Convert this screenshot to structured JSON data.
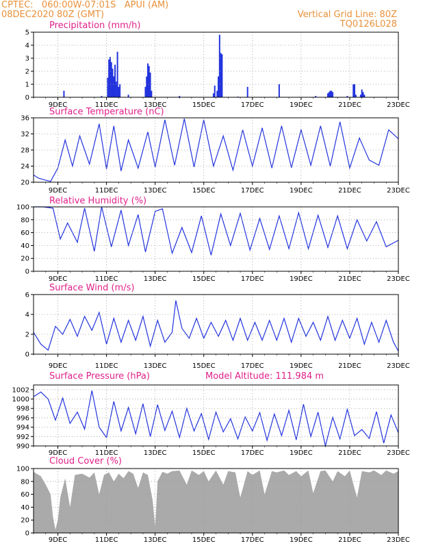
{
  "header": {
    "line1": "CPTEC:   060:00W-07:01S   APUI (AM)",
    "line2": "08DEC2020 80Z (GMT)",
    "right1": "Vertical Grid Line: 80Z",
    "right2": "TQ0126L028"
  },
  "colors": {
    "series": "#2233dd",
    "cloud": "#aaaaaa",
    "title": "#e0208a",
    "header": "#e8913a"
  },
  "chart_data": [
    {
      "type": "bar",
      "title": "Precipitation (mm/h)",
      "ylim": [
        0,
        5
      ],
      "yticks": [
        "0",
        "1",
        "2",
        "3",
        "4",
        "5"
      ],
      "xlim": [
        8,
        23
      ],
      "xticks": [
        9,
        11,
        13,
        15,
        17,
        19,
        21,
        23
      ],
      "xtick_labels": [
        "9DEC",
        "11DEC",
        "13DEC",
        "15DEC",
        "17DEC",
        "19DEC",
        "21DEC",
        "23DEC"
      ],
      "x": [
        9.25,
        10.8,
        11.05,
        11.1,
        11.15,
        11.2,
        11.25,
        11.3,
        11.35,
        11.4,
        11.45,
        11.5,
        11.55,
        11.9,
        12.6,
        12.65,
        12.7,
        12.75,
        12.8,
        12.85,
        14.0,
        15.4,
        15.45,
        15.55,
        15.6,
        15.65,
        15.7,
        15.75,
        16.4,
        16.8,
        18.1,
        19.6,
        20.1,
        20.15,
        20.2,
        20.25,
        20.3,
        20.9,
        21.15,
        21.2,
        21.25,
        21.45,
        21.5,
        21.55,
        21.6
      ],
      "values": [
        0.5,
        0.1,
        1.5,
        2.9,
        3.1,
        2.7,
        2.2,
        1.6,
        2.5,
        1.2,
        3.5,
        0.8,
        1.0,
        0.2,
        0.8,
        1.6,
        2.6,
        2.4,
        1.9,
        0.5,
        0.1,
        0.3,
        0.9,
        0.5,
        1.6,
        4.8,
        3.4,
        3.3,
        0.05,
        0.8,
        1.0,
        0.1,
        0.3,
        0.4,
        0.5,
        0.5,
        0.4,
        0.1,
        1.0,
        1.0,
        0.2,
        0.2,
        0.6,
        0.4,
        0.2
      ]
    },
    {
      "type": "line",
      "title": "Surface Temperature (nC)",
      "ylim": [
        20,
        36
      ],
      "yticks": [
        "20",
        "24",
        "28",
        "32",
        "36"
      ],
      "xlim": [
        8,
        23
      ],
      "xticks": [
        9,
        11,
        13,
        15,
        17,
        19,
        21,
        23
      ],
      "xtick_labels": [
        "9DEC",
        "11DEC",
        "13DEC",
        "15DEC",
        "17DEC",
        "19DEC",
        "21DEC",
        "23DEC"
      ],
      "x": [
        8.0,
        8.2,
        8.5,
        8.7,
        9.0,
        9.3,
        9.6,
        9.9,
        10.3,
        10.7,
        11.0,
        11.3,
        11.6,
        11.9,
        12.3,
        12.7,
        13.0,
        13.4,
        13.8,
        14.2,
        14.6,
        15.0,
        15.4,
        15.8,
        16.2,
        16.6,
        17.0,
        17.4,
        17.8,
        18.2,
        18.6,
        19.0,
        19.4,
        19.8,
        20.2,
        20.6,
        21.0,
        21.4,
        21.8,
        22.2,
        22.6,
        23.0
      ],
      "values": [
        21.8,
        21.0,
        20.5,
        20.2,
        23.5,
        30.5,
        24.0,
        31.5,
        24.5,
        34.5,
        23.3,
        34.0,
        22.8,
        30.5,
        23.5,
        32.5,
        23.8,
        35.5,
        24.2,
        35.8,
        23.8,
        35.5,
        24.0,
        31.5,
        23.0,
        33.0,
        24.0,
        33.5,
        23.5,
        34.0,
        23.6,
        33.0,
        24.2,
        34.0,
        24.0,
        35.0,
        23.5,
        31.0,
        25.5,
        24.2,
        33.0,
        30.8
      ]
    },
    {
      "type": "line",
      "title": "Relative Humidity (%)",
      "ylim": [
        0,
        100
      ],
      "yticks": [
        "0",
        "20",
        "40",
        "60",
        "80",
        "100"
      ],
      "xlim": [
        8,
        23
      ],
      "xticks": [
        9,
        11,
        13,
        15,
        17,
        19,
        21,
        23
      ],
      "xtick_labels": [
        "9DEC",
        "11DEC",
        "13DEC",
        "15DEC",
        "17DEC",
        "19DEC",
        "21DEC",
        "23DEC"
      ],
      "x": [
        8.0,
        8.4,
        8.8,
        9.1,
        9.4,
        9.8,
        10.1,
        10.5,
        10.8,
        11.2,
        11.6,
        11.9,
        12.3,
        12.6,
        13.0,
        13.3,
        13.7,
        14.1,
        14.5,
        14.9,
        15.3,
        15.7,
        16.1,
        16.5,
        16.9,
        17.3,
        17.7,
        18.1,
        18.5,
        18.9,
        19.3,
        19.7,
        20.1,
        20.5,
        20.9,
        21.3,
        21.7,
        22.1,
        22.5,
        23.0
      ],
      "values": [
        100,
        100,
        98,
        50,
        75,
        45,
        98,
        31,
        100,
        38,
        95,
        40,
        88,
        30,
        93,
        97,
        28,
        68,
        29,
        86,
        25,
        89,
        40,
        90,
        33,
        82,
        34,
        86,
        35,
        91,
        35,
        87,
        37,
        86,
        35,
        80,
        47,
        77,
        38,
        48
      ]
    },
    {
      "type": "line",
      "title": "Surface Wind (m/s)",
      "ylim": [
        0,
        6
      ],
      "yticks": [
        "0",
        "2",
        "4",
        "6"
      ],
      "xlim": [
        8,
        23
      ],
      "xticks": [
        9,
        11,
        13,
        15,
        17,
        19,
        21,
        23
      ],
      "xtick_labels": [
        "9DEC",
        "11DEC",
        "13DEC",
        "15DEC",
        "17DEC",
        "19DEC",
        "21DEC",
        "23DEC"
      ],
      "x": [
        8.0,
        8.3,
        8.6,
        8.9,
        9.2,
        9.5,
        9.8,
        10.1,
        10.4,
        10.7,
        11.0,
        11.3,
        11.6,
        11.9,
        12.2,
        12.5,
        12.8,
        13.1,
        13.4,
        13.7,
        13.85,
        14.1,
        14.4,
        14.7,
        15.0,
        15.3,
        15.6,
        15.9,
        16.2,
        16.5,
        16.8,
        17.1,
        17.4,
        17.7,
        18.0,
        18.3,
        18.6,
        18.9,
        19.2,
        19.5,
        19.8,
        20.1,
        20.4,
        20.7,
        21.0,
        21.3,
        21.6,
        21.9,
        22.2,
        22.5,
        22.8,
        23.0
      ],
      "values": [
        2.2,
        1.0,
        0.4,
        2.8,
        2.0,
        3.5,
        1.8,
        3.8,
        2.4,
        4.2,
        1.0,
        3.6,
        1.2,
        3.4,
        1.4,
        3.8,
        0.8,
        3.4,
        1.2,
        2.2,
        5.4,
        2.6,
        1.6,
        3.6,
        1.6,
        3.2,
        1.8,
        3.4,
        1.4,
        3.6,
        1.4,
        3.2,
        1.4,
        3.4,
        1.4,
        3.6,
        1.2,
        3.6,
        1.8,
        3.2,
        1.4,
        3.8,
        1.4,
        3.4,
        1.6,
        3.6,
        1.0,
        3.2,
        1.2,
        3.4,
        1.2,
        0.3
      ]
    },
    {
      "type": "line",
      "title": "Surface Pressure (hPa)",
      "annotation": "Model Altitude: 111.984 m",
      "ylim": [
        990,
        1003
      ],
      "yticks": [
        "990",
        "992",
        "994",
        "996",
        "998",
        "1000",
        "1002"
      ],
      "xlim": [
        8,
        23
      ],
      "xticks": [
        9,
        11,
        13,
        15,
        17,
        19,
        21,
        23
      ],
      "xtick_labels": [
        "9DEC",
        "11DEC",
        "13DEC",
        "15DEC",
        "17DEC",
        "19DEC",
        "21DEC",
        "23DEC"
      ],
      "x": [
        8.0,
        8.3,
        8.6,
        8.9,
        9.2,
        9.5,
        9.8,
        10.1,
        10.4,
        10.7,
        11.0,
        11.3,
        11.6,
        11.9,
        12.2,
        12.5,
        12.8,
        13.1,
        13.4,
        13.7,
        14.0,
        14.3,
        14.6,
        14.9,
        15.2,
        15.5,
        15.8,
        16.1,
        16.4,
        16.7,
        17.0,
        17.3,
        17.6,
        17.9,
        18.2,
        18.5,
        18.8,
        19.1,
        19.4,
        19.7,
        20.0,
        20.3,
        20.6,
        20.9,
        21.2,
        21.5,
        21.8,
        22.1,
        22.4,
        22.7,
        23.0
      ],
      "values": [
        1000.5,
        1001.5,
        1000.0,
        995.5,
        1000.2,
        994.8,
        997.2,
        993.6,
        1001.8,
        994.0,
        991.8,
        999.5,
        993.2,
        998.2,
        992.6,
        999.0,
        992.0,
        998.8,
        993.3,
        997.4,
        991.8,
        998.0,
        993.2,
        996.9,
        991.4,
        997.2,
        993.0,
        995.8,
        991.5,
        996.2,
        993.2,
        997.1,
        991.2,
        996.8,
        992.2,
        997.6,
        991.3,
        998.9,
        992.0,
        997.2,
        990.0,
        996.1,
        991.5,
        997.8,
        992.2,
        993.5,
        991.6,
        997.3,
        990.6,
        996.6,
        992.8
      ]
    },
    {
      "type": "area",
      "title": "Cloud Cover (%)",
      "ylim": [
        0,
        100
      ],
      "yticks": [
        "0",
        "20",
        "40",
        "60",
        "80",
        "100"
      ],
      "xlim": [
        8,
        23
      ],
      "xticks": [
        9,
        11,
        13,
        15,
        17,
        19,
        21,
        23
      ],
      "xtick_labels": [
        "9DEC",
        "11DEC",
        "13DEC",
        "15DEC",
        "17DEC",
        "19DEC",
        "21DEC",
        "23DEC"
      ],
      "x": [
        8.0,
        8.3,
        8.5,
        8.7,
        8.8,
        8.9,
        9.0,
        9.1,
        9.3,
        9.5,
        9.7,
        10.0,
        10.3,
        10.5,
        10.7,
        10.9,
        11.1,
        11.3,
        11.5,
        11.7,
        11.9,
        12.1,
        12.3,
        12.5,
        12.7,
        12.9,
        13.0,
        13.1,
        13.3,
        13.5,
        13.7,
        14.0,
        14.3,
        14.5,
        14.8,
        15.0,
        15.2,
        15.5,
        15.8,
        16.0,
        16.3,
        16.5,
        16.8,
        17.0,
        17.3,
        17.5,
        17.8,
        18.0,
        18.3,
        18.5,
        18.8,
        19.0,
        19.3,
        19.5,
        19.8,
        20.0,
        20.3,
        20.5,
        20.8,
        21.0,
        21.3,
        21.5,
        21.8,
        22.0,
        22.3,
        22.5,
        22.8,
        23.0
      ],
      "values": [
        95,
        88,
        75,
        60,
        25,
        5,
        20,
        55,
        85,
        40,
        90,
        92,
        86,
        94,
        60,
        90,
        94,
        80,
        92,
        85,
        96,
        92,
        70,
        94,
        90,
        50,
        10,
        80,
        95,
        92,
        96,
        97,
        75,
        97,
        90,
        96,
        80,
        97,
        75,
        96,
        94,
        55,
        96,
        90,
        97,
        60,
        96,
        94,
        97,
        90,
        96,
        88,
        97,
        62,
        96,
        97,
        80,
        96,
        88,
        97,
        55,
        96,
        94,
        97,
        90,
        97,
        92,
        96
      ]
    }
  ]
}
